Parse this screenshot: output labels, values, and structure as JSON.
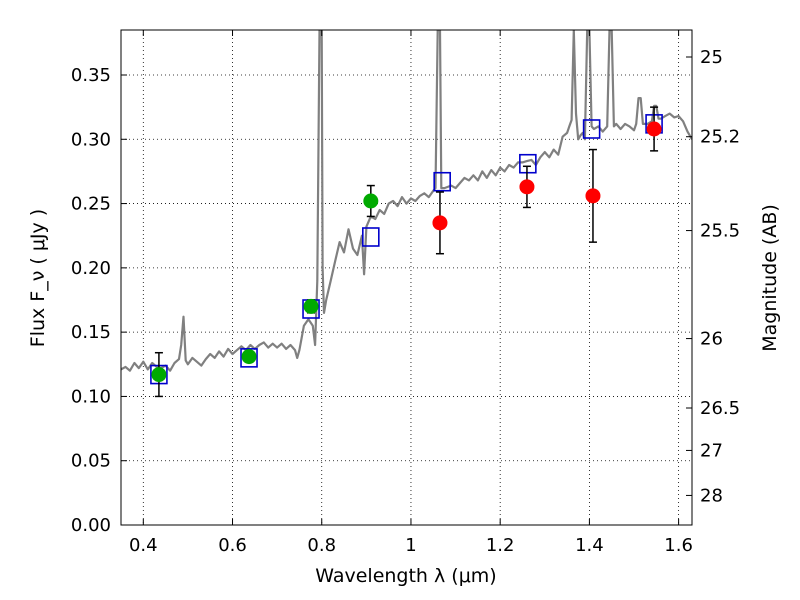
{
  "chart_data": {
    "type": "scatter",
    "xlabel": "Wavelength  λ (μm)",
    "ylabel": "Flux  F_ν  ( μJy )",
    "y2label": "Magnitude (AB)",
    "xlim": [
      0.35,
      1.63
    ],
    "ylim": [
      0.0,
      0.385
    ],
    "grid": true,
    "x_ticks": [
      {
        "value": 0.4,
        "label": "0.4"
      },
      {
        "value": 0.6,
        "label": "0.6"
      },
      {
        "value": 0.8,
        "label": "0.8"
      },
      {
        "value": 1.0,
        "label": "1"
      },
      {
        "value": 1.2,
        "label": "1.2"
      },
      {
        "value": 1.4,
        "label": "1.4"
      },
      {
        "value": 1.6,
        "label": "1.6"
      }
    ],
    "y_ticks": [
      {
        "value": 0.0,
        "label": "0.00"
      },
      {
        "value": 0.05,
        "label": "0.05"
      },
      {
        "value": 0.1,
        "label": "0.10"
      },
      {
        "value": 0.15,
        "label": "0.15"
      },
      {
        "value": 0.2,
        "label": "0.20"
      },
      {
        "value": 0.25,
        "label": "0.25"
      },
      {
        "value": 0.3,
        "label": "0.30"
      },
      {
        "value": 0.35,
        "label": "0.35"
      }
    ],
    "y2_ticks": [
      {
        "flux": 0.364,
        "label": "25"
      },
      {
        "flux": 0.302,
        "label": "25.2"
      },
      {
        "flux": 0.229,
        "label": "25.5"
      },
      {
        "flux": 0.145,
        "label": "26"
      },
      {
        "flux": 0.091,
        "label": "26.5"
      },
      {
        "flux": 0.058,
        "label": "27"
      },
      {
        "flux": 0.023,
        "label": "28"
      }
    ],
    "series": [
      {
        "kind": "spectrum",
        "color": "#808080",
        "points": [
          [
            0.35,
            0.121
          ],
          [
            0.36,
            0.123
          ],
          [
            0.37,
            0.12
          ],
          [
            0.38,
            0.126
          ],
          [
            0.39,
            0.122
          ],
          [
            0.4,
            0.127
          ],
          [
            0.41,
            0.121
          ],
          [
            0.42,
            0.126
          ],
          [
            0.43,
            0.123
          ],
          [
            0.44,
            0.122
          ],
          [
            0.45,
            0.124
          ],
          [
            0.46,
            0.12
          ],
          [
            0.47,
            0.126
          ],
          [
            0.48,
            0.129
          ],
          [
            0.485,
            0.14
          ],
          [
            0.49,
            0.162
          ],
          [
            0.495,
            0.128
          ],
          [
            0.5,
            0.125
          ],
          [
            0.51,
            0.13
          ],
          [
            0.52,
            0.127
          ],
          [
            0.53,
            0.124
          ],
          [
            0.54,
            0.129
          ],
          [
            0.55,
            0.133
          ],
          [
            0.56,
            0.13
          ],
          [
            0.57,
            0.135
          ],
          [
            0.58,
            0.131
          ],
          [
            0.59,
            0.137
          ],
          [
            0.6,
            0.133
          ],
          [
            0.61,
            0.136
          ],
          [
            0.62,
            0.139
          ],
          [
            0.63,
            0.136
          ],
          [
            0.64,
            0.14
          ],
          [
            0.65,
            0.137
          ],
          [
            0.66,
            0.14
          ],
          [
            0.67,
            0.142
          ],
          [
            0.68,
            0.138
          ],
          [
            0.69,
            0.141
          ],
          [
            0.7,
            0.138
          ],
          [
            0.71,
            0.141
          ],
          [
            0.72,
            0.137
          ],
          [
            0.73,
            0.14
          ],
          [
            0.74,
            0.136
          ],
          [
            0.745,
            0.13
          ],
          [
            0.75,
            0.136
          ],
          [
            0.76,
            0.155
          ],
          [
            0.77,
            0.16
          ],
          [
            0.78,
            0.155
          ],
          [
            0.785,
            0.14
          ],
          [
            0.79,
            0.19
          ],
          [
            0.795,
            0.385
          ],
          [
            0.8,
            0.385
          ],
          [
            0.802,
            0.2
          ],
          [
            0.805,
            0.165
          ],
          [
            0.81,
            0.175
          ],
          [
            0.82,
            0.19
          ],
          [
            0.83,
            0.205
          ],
          [
            0.84,
            0.22
          ],
          [
            0.85,
            0.212
          ],
          [
            0.86,
            0.23
          ],
          [
            0.87,
            0.215
          ],
          [
            0.88,
            0.21
          ],
          [
            0.89,
            0.225
          ],
          [
            0.895,
            0.195
          ],
          [
            0.9,
            0.232
          ],
          [
            0.91,
            0.24
          ],
          [
            0.92,
            0.238
          ],
          [
            0.93,
            0.245
          ],
          [
            0.94,
            0.242
          ],
          [
            0.95,
            0.25
          ],
          [
            0.96,
            0.252
          ],
          [
            0.97,
            0.248
          ],
          [
            0.98,
            0.255
          ],
          [
            0.99,
            0.25
          ],
          [
            1.0,
            0.254
          ],
          [
            1.01,
            0.252
          ],
          [
            1.02,
            0.256
          ],
          [
            1.03,
            0.258
          ],
          [
            1.04,
            0.255
          ],
          [
            1.05,
            0.26
          ],
          [
            1.055,
            0.262
          ],
          [
            1.06,
            0.385
          ],
          [
            1.065,
            0.385
          ],
          [
            1.068,
            0.262
          ],
          [
            1.075,
            0.262
          ],
          [
            1.09,
            0.264
          ],
          [
            1.1,
            0.262
          ],
          [
            1.11,
            0.266
          ],
          [
            1.12,
            0.27
          ],
          [
            1.13,
            0.268
          ],
          [
            1.14,
            0.272
          ],
          [
            1.15,
            0.268
          ],
          [
            1.16,
            0.275
          ],
          [
            1.17,
            0.27
          ],
          [
            1.18,
            0.276
          ],
          [
            1.19,
            0.272
          ],
          [
            1.2,
            0.278
          ],
          [
            1.21,
            0.275
          ],
          [
            1.22,
            0.28
          ],
          [
            1.23,
            0.278
          ],
          [
            1.24,
            0.282
          ],
          [
            1.25,
            0.282
          ],
          [
            1.26,
            0.283
          ],
          [
            1.27,
            0.284
          ],
          [
            1.28,
            0.28
          ],
          [
            1.29,
            0.286
          ],
          [
            1.3,
            0.29
          ],
          [
            1.31,
            0.286
          ],
          [
            1.32,
            0.292
          ],
          [
            1.33,
            0.288
          ],
          [
            1.34,
            0.302
          ],
          [
            1.35,
            0.305
          ],
          [
            1.355,
            0.31
          ],
          [
            1.36,
            0.315
          ],
          [
            1.365,
            0.385
          ],
          [
            1.37,
            0.32
          ],
          [
            1.375,
            0.3
          ],
          [
            1.38,
            0.303
          ],
          [
            1.385,
            0.305
          ],
          [
            1.39,
            0.3
          ],
          [
            1.395,
            0.385
          ],
          [
            1.4,
            0.385
          ],
          [
            1.405,
            0.31
          ],
          [
            1.41,
            0.308
          ],
          [
            1.42,
            0.31
          ],
          [
            1.43,
            0.306
          ],
          [
            1.44,
            0.31
          ],
          [
            1.445,
            0.385
          ],
          [
            1.45,
            0.385
          ],
          [
            1.455,
            0.31
          ],
          [
            1.46,
            0.312
          ],
          [
            1.47,
            0.308
          ],
          [
            1.48,
            0.312
          ],
          [
            1.49,
            0.31
          ],
          [
            1.5,
            0.307
          ],
          [
            1.505,
            0.312
          ],
          [
            1.51,
            0.332
          ],
          [
            1.515,
            0.332
          ],
          [
            1.52,
            0.312
          ],
          [
            1.53,
            0.312
          ],
          [
            1.54,
            0.314
          ],
          [
            1.545,
            0.326
          ],
          [
            1.55,
            0.326
          ],
          [
            1.555,
            0.316
          ],
          [
            1.56,
            0.316
          ],
          [
            1.57,
            0.318
          ],
          [
            1.58,
            0.32
          ],
          [
            1.59,
            0.317
          ],
          [
            1.6,
            0.318
          ],
          [
            1.61,
            0.314
          ],
          [
            1.62,
            0.306
          ],
          [
            1.63,
            0.3
          ]
        ]
      },
      {
        "kind": "model-squares",
        "color": "#0000cc",
        "points": [
          [
            0.435,
            0.117
          ],
          [
            0.637,
            0.13
          ],
          [
            0.776,
            0.168
          ],
          [
            0.91,
            0.224
          ],
          [
            1.07,
            0.267
          ],
          [
            1.262,
            0.281
          ],
          [
            1.405,
            0.308
          ],
          [
            1.545,
            0.312
          ]
        ]
      },
      {
        "kind": "observed-green",
        "color": "#00aa00",
        "points": [
          {
            "x": 0.435,
            "y": 0.117,
            "err": 0.017
          },
          {
            "x": 0.637,
            "y": 0.131,
            "err": 0.004
          },
          {
            "x": 0.776,
            "y": 0.17,
            "err": 0.005
          },
          {
            "x": 0.91,
            "y": 0.252,
            "err": 0.012
          }
        ]
      },
      {
        "kind": "observed-red",
        "color": "#ff0000",
        "points": [
          {
            "x": 1.065,
            "y": 0.235,
            "err": 0.024
          },
          {
            "x": 1.26,
            "y": 0.263,
            "err": 0.016
          },
          {
            "x": 1.408,
            "y": 0.256,
            "err": 0.036
          },
          {
            "x": 1.545,
            "y": 0.308,
            "err": 0.017
          }
        ]
      }
    ]
  }
}
